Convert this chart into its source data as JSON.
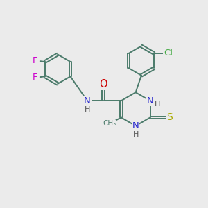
{
  "background_color": "#ebebeb",
  "fig_size": [
    3.0,
    3.0
  ],
  "dpi": 100,
  "atom_colors": {
    "C": "#4a7a6a",
    "N": "#2222cc",
    "O": "#cc0000",
    "S": "#aaaa00",
    "F": "#cc00cc",
    "Cl": "#44aa44",
    "H": "#555555"
  },
  "bond_color": "#4a7a6a",
  "bond_width": 1.4,
  "font_size": 9.5
}
